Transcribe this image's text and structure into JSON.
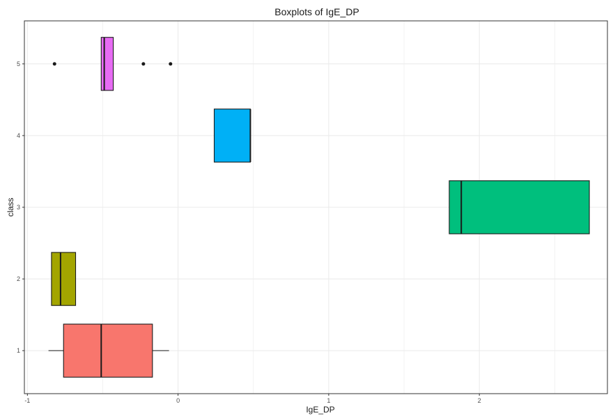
{
  "chart_data": {
    "type": "boxplot",
    "orientation": "horizontal",
    "title": "Boxplots of IgE_DP",
    "xlabel": "IgE_DP",
    "ylabel": "class",
    "xlim": [
      -1.02,
      2.85
    ],
    "ylim": [
      0.4,
      5.6
    ],
    "x_ticks": [
      -1,
      0,
      1,
      2
    ],
    "x_tick_labels": [
      "-1",
      "0",
      "1",
      "2"
    ],
    "y_ticks": [
      1,
      2,
      3,
      4,
      5
    ],
    "y_tick_labels": [
      "1",
      "2",
      "3",
      "4",
      "5"
    ],
    "grid": true,
    "legend": "none",
    "box_half_height": 0.37,
    "boxes": [
      {
        "class": "1",
        "lower_whisker": -0.86,
        "q1": -0.76,
        "median": -0.51,
        "q3": -0.17,
        "upper_whisker": -0.06,
        "outliers": [],
        "color": "#F8766D"
      },
      {
        "class": "2",
        "lower_whisker": -0.84,
        "q1": -0.84,
        "median": -0.78,
        "q3": -0.68,
        "upper_whisker": -0.68,
        "outliers": [],
        "color": "#A3A500"
      },
      {
        "class": "3",
        "lower_whisker": 1.8,
        "q1": 1.8,
        "median": 1.88,
        "q3": 2.73,
        "upper_whisker": 2.73,
        "outliers": [],
        "color": "#00BF7D"
      },
      {
        "class": "4",
        "lower_whisker": 0.24,
        "q1": 0.24,
        "median": 0.48,
        "q3": 0.48,
        "upper_whisker": 0.48,
        "outliers": [],
        "color": "#00B0F6"
      },
      {
        "class": "5",
        "lower_whisker": -0.51,
        "q1": -0.51,
        "median": -0.49,
        "q3": -0.43,
        "upper_whisker": -0.43,
        "outliers": [
          -0.82,
          -0.23,
          -0.05
        ],
        "color": "#E76BF3"
      }
    ],
    "colors": {
      "grid": "#ebebeb",
      "panel_border": "#333333",
      "box_outline": "#1a1a1a",
      "outlier": "#1a1a1a"
    }
  }
}
